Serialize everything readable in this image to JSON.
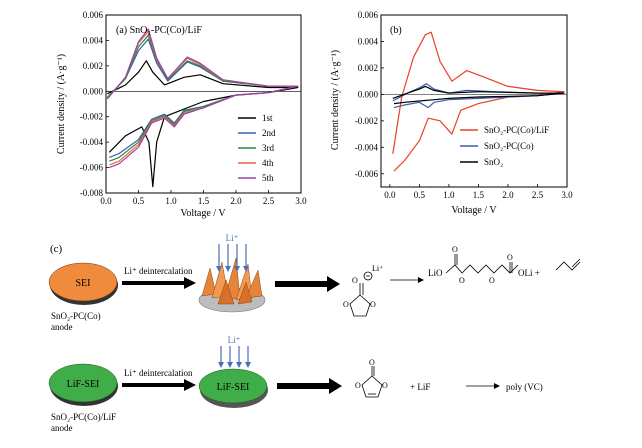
{
  "panel_a": {
    "label": "(a) SnO₂-PC(Co)/LiF",
    "ylabel": "Current density / (A·g⁻¹)",
    "xlabel": "Voltage / V",
    "legend": [
      "1st",
      "2nd",
      "3rd",
      "4th",
      "5th"
    ]
  },
  "panel_b": {
    "label": "(b)",
    "ylabel": "Current density / (A·g⁻¹)",
    "xlabel": "Voltage / V",
    "legend": [
      "SnO₂-PC(Co)/LiF",
      "SnO₂-PC(Co)",
      "SnO₂"
    ]
  },
  "panel_c": {
    "label": "(c)",
    "sei_label": "SEI",
    "lif_sei_label": "LiF-SEI",
    "deintercalation": "Li⁺ deintercalation",
    "li_ion": "Li⁺",
    "anode1": "SnO₂-PC(Co)",
    "anode2": "SnO₂-PC(Co)/LiF",
    "anode_word": "anode",
    "product1": "LiO",
    "product1b": "OLi +",
    "plus_lif": "+ LiF",
    "poly": "poly (VC)"
  },
  "colors": {
    "c1": "#000000",
    "c2": "#3a5fb0",
    "c3": "#2e8b3e",
    "c4": "#e8643a",
    "c5": "#9b3fb0",
    "sei": "#f08a3c",
    "lif": "#3fae49"
  },
  "chart_data": [
    {
      "type": "line",
      "xlim": [
        0.0,
        3.0
      ],
      "ylim": [
        -0.008,
        0.006
      ],
      "xticks": [
        "0.0",
        "0.5",
        "1.0",
        "1.5",
        "2.0",
        "2.5",
        "3.0"
      ],
      "yticks": [
        "-0.008",
        "-0.006",
        "-0.004",
        "-0.002",
        "0.000",
        "0.002",
        "0.004",
        "0.006"
      ],
      "series": [
        {
          "name": "1st",
          "color": "#000000",
          "anodic": [
            [
              0.02,
              -0.0002
            ],
            [
              0.3,
              0.0005
            ],
            [
              0.5,
              0.0015
            ],
            [
              0.62,
              0.0024
            ],
            [
              0.72,
              0.0015
            ],
            [
              0.9,
              0.0005
            ],
            [
              1.2,
              0.0011
            ],
            [
              1.45,
              0.0013
            ],
            [
              1.8,
              0.0006
            ],
            [
              2.5,
              0.0003
            ],
            [
              2.95,
              0.0003
            ]
          ],
          "cathodic": [
            [
              2.95,
              0.0003
            ],
            [
              2.5,
              -0.0001
            ],
            [
              2.0,
              -0.0003
            ],
            [
              1.5,
              -0.0008
            ],
            [
              1.0,
              -0.0018
            ],
            [
              0.9,
              -0.002
            ],
            [
              0.78,
              -0.004
            ],
            [
              0.72,
              -0.0075
            ],
            [
              0.66,
              -0.004
            ],
            [
              0.55,
              -0.0028
            ],
            [
              0.3,
              -0.0035
            ],
            [
              0.05,
              -0.0048
            ]
          ]
        },
        {
          "name": "2nd",
          "color": "#3a5fb0",
          "anodic": [
            [
              0.02,
              -0.0005
            ],
            [
              0.3,
              0.001
            ],
            [
              0.5,
              0.0032
            ],
            [
              0.65,
              0.0041
            ],
            [
              0.78,
              0.0022
            ],
            [
              0.95,
              0.0008
            ],
            [
              1.25,
              0.0023
            ],
            [
              1.45,
              0.0019
            ],
            [
              1.8,
              0.0008
            ],
            [
              2.5,
              0.0004
            ],
            [
              2.95,
              0.0004
            ]
          ],
          "cathodic": [
            [
              2.95,
              0.0004
            ],
            [
              2.5,
              -0.0001
            ],
            [
              2.0,
              -0.0003
            ],
            [
              1.5,
              -0.0012
            ],
            [
              1.2,
              -0.0015
            ],
            [
              1.05,
              -0.0025
            ],
            [
              0.9,
              -0.0018
            ],
            [
              0.7,
              -0.0022
            ],
            [
              0.5,
              -0.0038
            ],
            [
              0.2,
              -0.0049
            ],
            [
              0.05,
              -0.0052
            ]
          ]
        },
        {
          "name": "3rd",
          "color": "#2e8b3e",
          "anodic": [
            [
              0.02,
              -0.0005
            ],
            [
              0.3,
              0.001
            ],
            [
              0.5,
              0.0035
            ],
            [
              0.65,
              0.0044
            ],
            [
              0.78,
              0.0024
            ],
            [
              0.95,
              0.0009
            ],
            [
              1.25,
              0.0024
            ],
            [
              1.45,
              0.002
            ],
            [
              1.8,
              0.0008
            ],
            [
              2.5,
              0.0004
            ],
            [
              2.95,
              0.0004
            ]
          ],
          "cathodic": [
            [
              2.95,
              0.0004
            ],
            [
              2.5,
              -0.0001
            ],
            [
              2.0,
              -0.0003
            ],
            [
              1.5,
              -0.0012
            ],
            [
              1.2,
              -0.0016
            ],
            [
              1.05,
              -0.0026
            ],
            [
              0.9,
              -0.0019
            ],
            [
              0.7,
              -0.0023
            ],
            [
              0.5,
              -0.004
            ],
            [
              0.2,
              -0.0052
            ],
            [
              0.05,
              -0.0055
            ]
          ]
        },
        {
          "name": "4th",
          "color": "#e8643a",
          "anodic": [
            [
              0.02,
              -0.0006
            ],
            [
              0.3,
              0.0011
            ],
            [
              0.5,
              0.0038
            ],
            [
              0.65,
              0.0047
            ],
            [
              0.78,
              0.0025
            ],
            [
              0.95,
              0.001
            ],
            [
              1.25,
              0.0026
            ],
            [
              1.45,
              0.0021
            ],
            [
              1.8,
              0.0009
            ],
            [
              2.5,
              0.0004
            ],
            [
              2.95,
              0.0004
            ]
          ],
          "cathodic": [
            [
              2.95,
              0.0004
            ],
            [
              2.5,
              -0.0001
            ],
            [
              2.0,
              -0.0003
            ],
            [
              1.5,
              -0.0013
            ],
            [
              1.2,
              -0.0017
            ],
            [
              1.05,
              -0.0027
            ],
            [
              0.9,
              -0.002
            ],
            [
              0.7,
              -0.0024
            ],
            [
              0.5,
              -0.0042
            ],
            [
              0.2,
              -0.0055
            ],
            [
              0.05,
              -0.0058
            ]
          ]
        },
        {
          "name": "5th",
          "color": "#9b3fb0",
          "anodic": [
            [
              0.02,
              -0.0006
            ],
            [
              0.3,
              0.0011
            ],
            [
              0.5,
              0.0039
            ],
            [
              0.65,
              0.0049
            ],
            [
              0.78,
              0.0026
            ],
            [
              0.95,
              0.001
            ],
            [
              1.25,
              0.0027
            ],
            [
              1.45,
              0.0022
            ],
            [
              1.8,
              0.0009
            ],
            [
              2.5,
              0.0004
            ],
            [
              2.95,
              0.0004
            ]
          ],
          "cathodic": [
            [
              2.95,
              0.0004
            ],
            [
              2.5,
              -0.0001
            ],
            [
              2.0,
              -0.0003
            ],
            [
              1.5,
              -0.0013
            ],
            [
              1.2,
              -0.0018
            ],
            [
              1.05,
              -0.0028
            ],
            [
              0.9,
              -0.0021
            ],
            [
              0.7,
              -0.0025
            ],
            [
              0.5,
              -0.0044
            ],
            [
              0.2,
              -0.0057
            ],
            [
              0.05,
              -0.006
            ]
          ]
        }
      ]
    },
    {
      "type": "line",
      "xlim": [
        -0.15,
        3.0
      ],
      "ylim": [
        -0.007,
        0.006
      ],
      "xticks": [
        "0.0",
        "0.5",
        "1.0",
        "1.5",
        "2.0",
        "2.5",
        "3.0"
      ],
      "yticks": [
        "-0.006",
        "-0.004",
        "-0.002",
        "0.000",
        "0.002",
        "0.004",
        "0.006"
      ],
      "series": [
        {
          "name": "SnO₂-PC(Co)/LiF",
          "color": "#e8402a",
          "anodic": [
            [
              0.05,
              -0.0045
            ],
            [
              0.2,
              -0.0002
            ],
            [
              0.4,
              0.0028
            ],
            [
              0.6,
              0.0045
            ],
            [
              0.7,
              0.0047
            ],
            [
              0.85,
              0.0025
            ],
            [
              1.05,
              0.001
            ],
            [
              1.3,
              0.0018
            ],
            [
              1.6,
              0.0013
            ],
            [
              2.0,
              0.0006
            ],
            [
              2.5,
              0.0003
            ],
            [
              2.95,
              0.0002
            ]
          ],
          "cathodic": [
            [
              2.95,
              0.0002
            ],
            [
              2.5,
              -0.0001
            ],
            [
              2.0,
              -0.0002
            ],
            [
              1.5,
              -0.0007
            ],
            [
              1.2,
              -0.0012
            ],
            [
              1.05,
              -0.003
            ],
            [
              0.85,
              -0.002
            ],
            [
              0.65,
              -0.0018
            ],
            [
              0.5,
              -0.0035
            ],
            [
              0.25,
              -0.005
            ],
            [
              0.07,
              -0.0058
            ]
          ]
        },
        {
          "name": "SnO₂-PC(Co)",
          "color": "#3a5fb0",
          "anodic": [
            [
              0.05,
              -0.0005
            ],
            [
              0.3,
              0.0001
            ],
            [
              0.5,
              0.0005
            ],
            [
              0.62,
              0.0008
            ],
            [
              0.75,
              0.0004
            ],
            [
              1.0,
              0.0001
            ],
            [
              1.3,
              0.0003
            ],
            [
              1.8,
              0.0002
            ],
            [
              2.5,
              0.0001
            ],
            [
              2.95,
              0.0001
            ]
          ],
          "cathodic": [
            [
              2.95,
              0.0001
            ],
            [
              2.5,
              -0.0001
            ],
            [
              2.0,
              -0.0002
            ],
            [
              1.5,
              -0.0003
            ],
            [
              1.0,
              -0.0004
            ],
            [
              0.75,
              -0.0006
            ],
            [
              0.65,
              -0.001
            ],
            [
              0.5,
              -0.0006
            ],
            [
              0.25,
              -0.0008
            ],
            [
              0.07,
              -0.001
            ]
          ]
        },
        {
          "name": "SnO₂",
          "color": "#000000",
          "anodic": [
            [
              0.05,
              -0.0003
            ],
            [
              0.3,
              0.0001
            ],
            [
              0.5,
              0.0004
            ],
            [
              0.6,
              0.0006
            ],
            [
              0.75,
              0.0003
            ],
            [
              1.0,
              0.0001
            ],
            [
              1.5,
              0.0002
            ],
            [
              2.5,
              0.0001
            ],
            [
              2.95,
              0.0001
            ]
          ],
          "cathodic": [
            [
              2.95,
              0.0001
            ],
            [
              2.5,
              -0.0001
            ],
            [
              1.5,
              -0.0002
            ],
            [
              1.0,
              -0.0003
            ],
            [
              0.75,
              -0.0004
            ],
            [
              0.5,
              -0.0005
            ],
            [
              0.25,
              -0.0006
            ],
            [
              0.07,
              -0.0007
            ]
          ]
        }
      ]
    }
  ]
}
